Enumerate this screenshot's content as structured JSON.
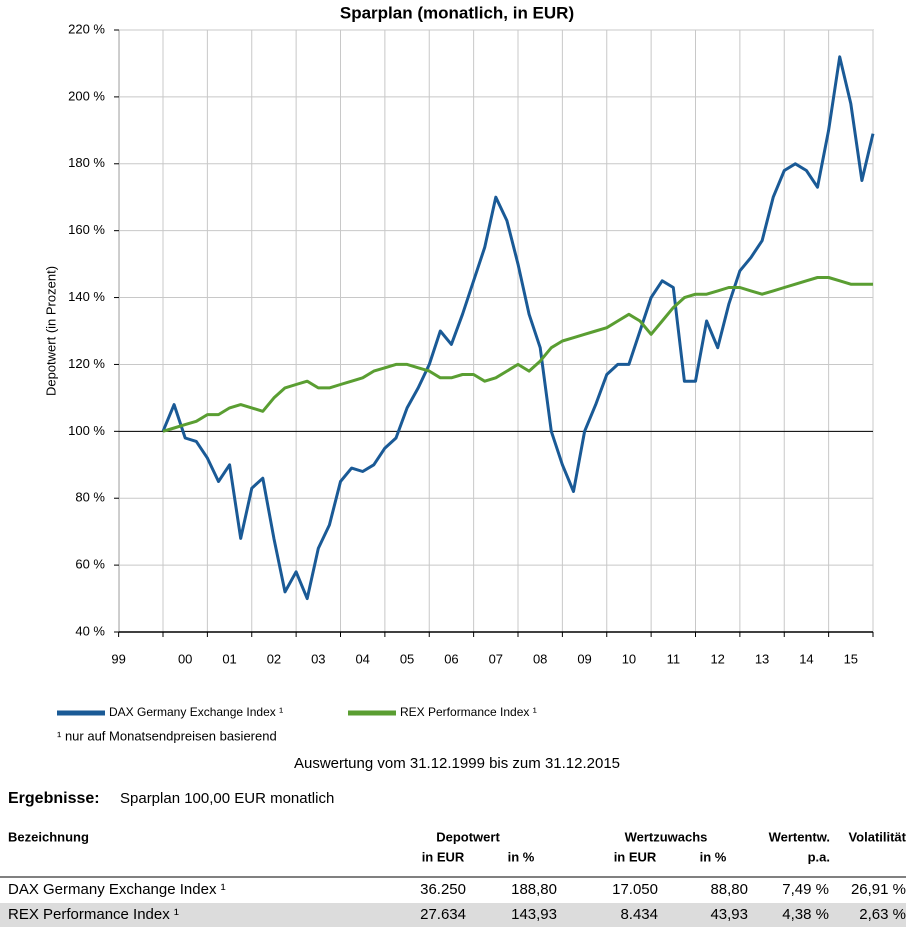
{
  "chart_data": {
    "type": "line",
    "title": "Sparplan (monatlich, in EUR)",
    "y_label": "Depotwert (in Prozent)",
    "categories": [
      "99",
      null,
      null,
      null,
      null,
      null,
      "00",
      null,
      null,
      null,
      "01",
      null,
      null,
      null,
      "02",
      null,
      null,
      null,
      "03",
      null,
      null,
      null,
      "04",
      null,
      null,
      null,
      "05",
      null,
      null,
      null,
      "06",
      null,
      null,
      null,
      "07",
      null,
      null,
      null,
      "08",
      null,
      null,
      null,
      "09",
      null,
      null,
      null,
      "10",
      null,
      null,
      null,
      "11",
      null,
      null,
      null,
      "12",
      null,
      null,
      null,
      "13",
      null,
      null,
      null,
      "14",
      null,
      null,
      null,
      "15",
      null,
      null
    ],
    "series": [
      {
        "name": "DAX Germany Exchange Index ¹",
        "color": "#1a5a96",
        "values": [
          null,
          null,
          null,
          null,
          100,
          108,
          98,
          97,
          92,
          85,
          90,
          68,
          83,
          86,
          68,
          52,
          58,
          50,
          65,
          72,
          85,
          89,
          88,
          90,
          95,
          98,
          107,
          113,
          120,
          130,
          126,
          135,
          145,
          155,
          170,
          163,
          150,
          135,
          125,
          100,
          90,
          82,
          100,
          108,
          117,
          120,
          120,
          130,
          140,
          145,
          143,
          115,
          115,
          133,
          125,
          138,
          148,
          152,
          157,
          170,
          178,
          180,
          178,
          173,
          190,
          212,
          198,
          175,
          189
        ]
      },
      {
        "name": "REX Performance Index ¹",
        "color": "#5a9e32",
        "values": [
          null,
          null,
          null,
          null,
          100,
          101,
          102,
          103,
          105,
          105,
          107,
          108,
          107,
          106,
          110,
          113,
          114,
          115,
          113,
          113,
          114,
          115,
          116,
          118,
          119,
          120,
          120,
          119,
          118,
          116,
          116,
          117,
          117,
          115,
          116,
          118,
          120,
          118,
          121,
          125,
          127,
          128,
          129,
          130,
          131,
          133,
          135,
          133,
          129,
          133,
          137,
          140,
          141,
          141,
          142,
          143,
          143,
          142,
          141,
          142,
          143,
          144,
          145,
          146,
          146,
          145,
          144,
          144,
          144
        ]
      }
    ],
    "ylim": [
      40,
      220
    ],
    "yticks": [
      {
        "value": 40,
        "label": "40 %"
      },
      {
        "value": 60,
        "label": "60 %"
      },
      {
        "value": 80,
        "label": "80 %"
      },
      {
        "value": 100,
        "label": "100 %"
      },
      {
        "value": 120,
        "label": "120 %"
      },
      {
        "value": 140,
        "label": "140 %"
      },
      {
        "value": 160,
        "label": "160 %"
      },
      {
        "value": 180,
        "label": "180 %"
      },
      {
        "value": 200,
        "label": "200 %"
      },
      {
        "value": 220,
        "label": "220 %"
      }
    ],
    "baseline": 100,
    "grid": true
  },
  "footnote": "¹ nur auf Monatsendpreisen basierend",
  "period": "Auswertung vom 31.12.1999 bis zum 31.12.2015",
  "results": {
    "label": "Ergebnisse:",
    "plan": "Sparplan 100,00 EUR monatlich"
  },
  "table": {
    "headers": [
      "Bezeichnung",
      "Depotwert",
      "Wertzuwachs",
      "Wertentw.",
      "Volatilität"
    ],
    "subheaders": [
      "in EUR",
      "in %",
      "in EUR",
      "in %",
      "p.a."
    ],
    "rows": [
      [
        "DAX Germany Exchange Index ¹",
        "36.250",
        "188,80",
        "17.050",
        "88,80",
        "7,49 %",
        "26,91 %"
      ],
      [
        "REX Performance Index ¹",
        "27.634",
        "143,93",
        "8.434",
        "43,93",
        "4,38 %",
        "2,63 %"
      ]
    ]
  }
}
